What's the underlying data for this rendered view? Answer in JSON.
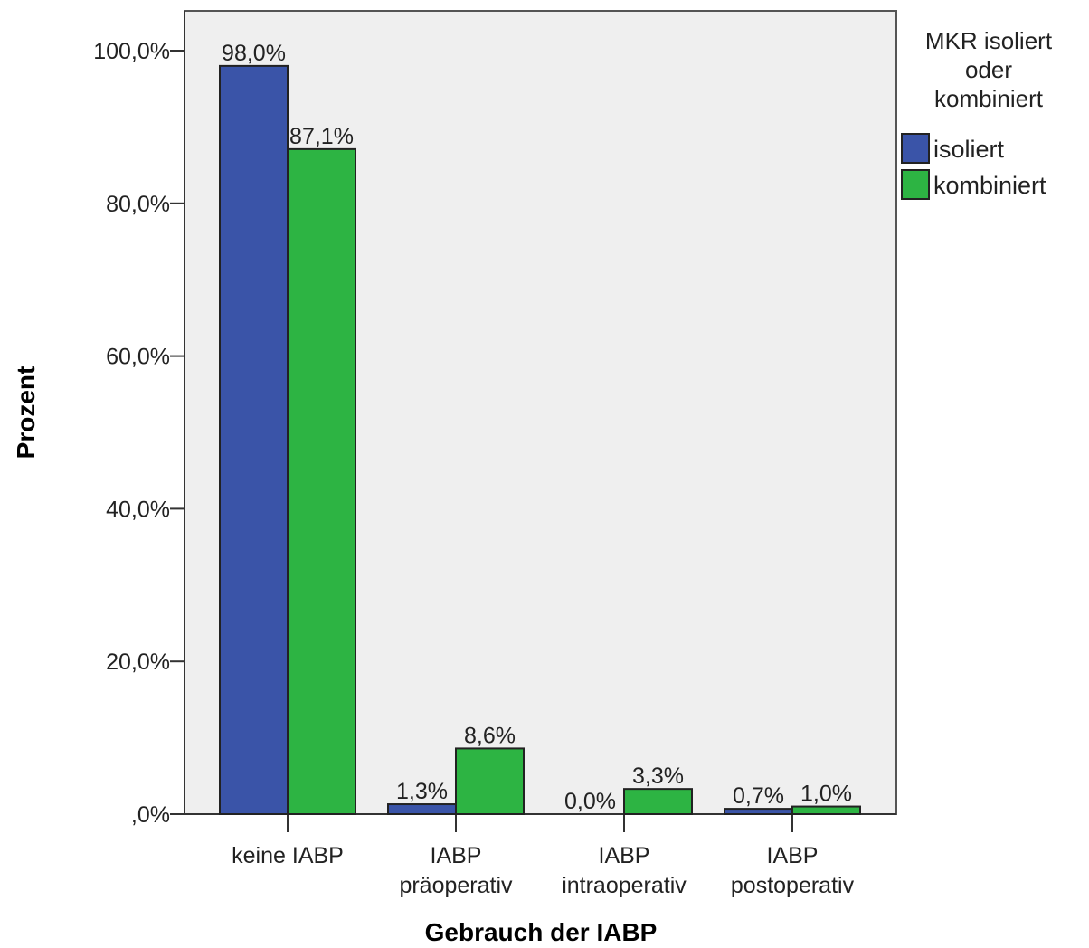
{
  "chart_data": {
    "type": "bar",
    "xlabel": "Gebrauch der IABP",
    "ylabel": "Prozent",
    "ylim": [
      0,
      100
    ],
    "yticks": [
      ",0%",
      "20,0%",
      "40,0%",
      "60,0%",
      "80,0%",
      "100,0%"
    ],
    "ytick_values": [
      0,
      20,
      40,
      60,
      80,
      100
    ],
    "categories": [
      [
        "keine  IABP"
      ],
      [
        "IABP",
        "präoperativ"
      ],
      [
        "IABP",
        "intraoperativ"
      ],
      [
        "IABP",
        "postoperativ"
      ]
    ],
    "series": [
      {
        "name": "isoliert",
        "color": "#3a54a8",
        "values": [
          98.0,
          1.3,
          0.0,
          0.7
        ],
        "labels": [
          "98,0%",
          "1,3%",
          "0,0%",
          "0,7%"
        ]
      },
      {
        "name": "kombiniert",
        "color": "#2db443",
        "values": [
          87.1,
          8.6,
          3.3,
          1.0
        ],
        "labels": [
          "87,1%",
          "8,6%",
          "3,3%",
          "1,0%"
        ]
      }
    ],
    "legend": {
      "title": [
        "MKR isoliert",
        "oder",
        "kombiniert"
      ],
      "placement": "right"
    },
    "plot_background": "#efefef",
    "grid": false
  }
}
